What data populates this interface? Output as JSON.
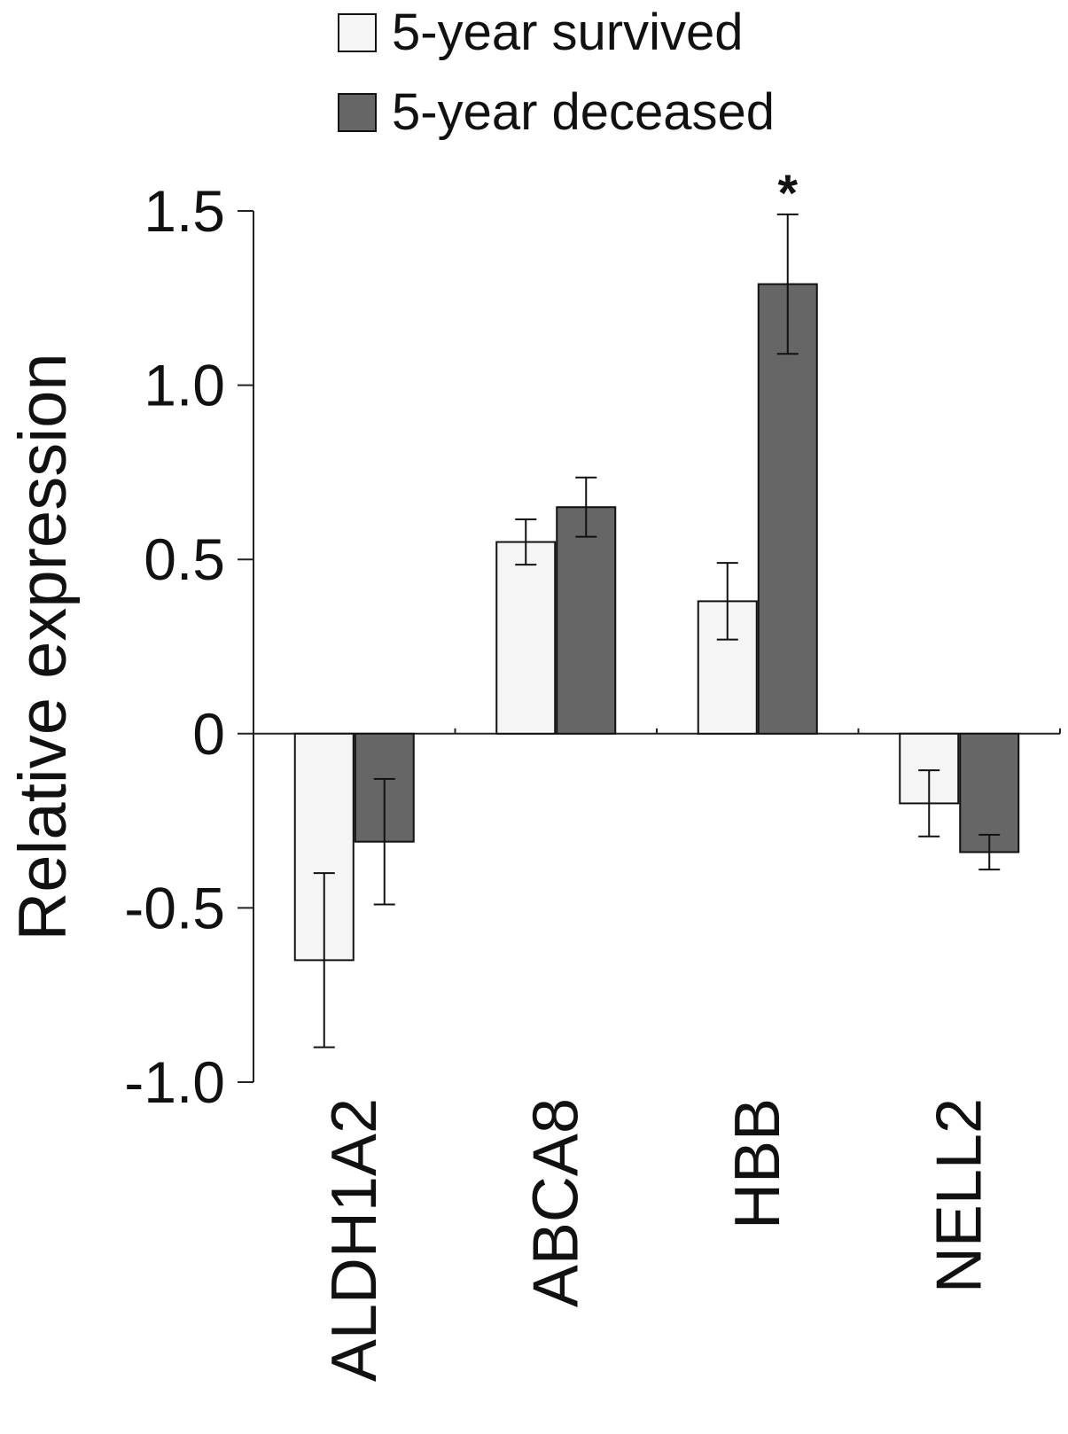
{
  "chart_data": {
    "type": "bar",
    "title": "",
    "xlabel": "",
    "ylabel": "Relative expression",
    "ylim": [
      -1.0,
      1.5
    ],
    "yticks": [
      {
        "value": 1.5,
        "label": "1.5"
      },
      {
        "value": 1.0,
        "label": "1.0"
      },
      {
        "value": 0.5,
        "label": "0.5"
      },
      {
        "value": 0,
        "label": "0"
      },
      {
        "value": -0.5,
        "label": "-0.5"
      },
      {
        "value": -1.0,
        "label": "-1.0"
      }
    ],
    "categories": [
      "ALDH1A2",
      "ABCA8",
      "HBB",
      "NELL2"
    ],
    "series": [
      {
        "name": "5-year survived",
        "color": "#f5f5f5",
        "values": [
          -0.65,
          0.55,
          0.38,
          -0.2
        ],
        "errors": [
          0.25,
          0.065,
          0.11,
          0.095
        ]
      },
      {
        "name": "5-year deceased",
        "color": "#666666",
        "values": [
          -0.31,
          0.65,
          1.29,
          -0.34
        ],
        "errors": [
          0.18,
          0.085,
          0.2,
          0.05
        ]
      }
    ],
    "annotations": [
      {
        "text": "*",
        "category": "HBB",
        "series": 1
      }
    ],
    "legend_position": "top-center",
    "grid": false
  }
}
